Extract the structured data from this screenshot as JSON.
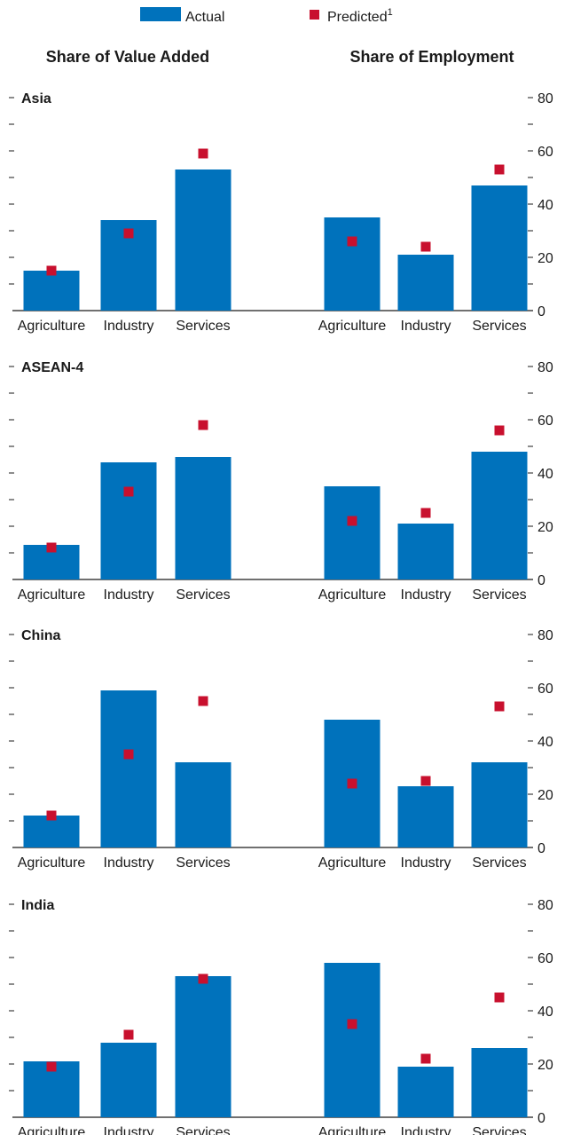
{
  "legend": {
    "actual_label": "Actual",
    "predicted_label": "Predicted",
    "predicted_superscript": "1"
  },
  "headers": {
    "left": "Share of Value Added",
    "right": "Share of Employment"
  },
  "colors": {
    "actual": "#0072bc",
    "predicted": "#c8102e",
    "axis": "#1a1a1a"
  },
  "chart_data": {
    "type": "bar",
    "categories": [
      "Agriculture",
      "Industry",
      "Services"
    ],
    "ylim": [
      0,
      80
    ],
    "y_ticks": [
      "0",
      "20",
      "40",
      "60",
      "80"
    ],
    "legend_position": "top",
    "panels": [
      {
        "title": "Asia",
        "value_added": {
          "actual": [
            15,
            34,
            53
          ],
          "predicted": [
            15,
            29,
            59
          ]
        },
        "employment": {
          "actual": [
            35,
            21,
            47
          ],
          "predicted": [
            26,
            24,
            53
          ]
        }
      },
      {
        "title": "ASEAN-4",
        "value_added": {
          "actual": [
            13,
            44,
            46
          ],
          "predicted": [
            12,
            33,
            58
          ]
        },
        "employment": {
          "actual": [
            35,
            21,
            48
          ],
          "predicted": [
            22,
            25,
            56
          ]
        }
      },
      {
        "title": "China",
        "value_added": {
          "actual": [
            12,
            59,
            32
          ],
          "predicted": [
            12,
            35,
            55
          ]
        },
        "employment": {
          "actual": [
            48,
            23,
            32
          ],
          "predicted": [
            24,
            25,
            53
          ]
        }
      },
      {
        "title": "India",
        "value_added": {
          "actual": [
            21,
            28,
            53
          ],
          "predicted": [
            19,
            31,
            52
          ]
        },
        "employment": {
          "actual": [
            58,
            19,
            26
          ],
          "predicted": [
            35,
            22,
            45
          ]
        }
      }
    ]
  }
}
